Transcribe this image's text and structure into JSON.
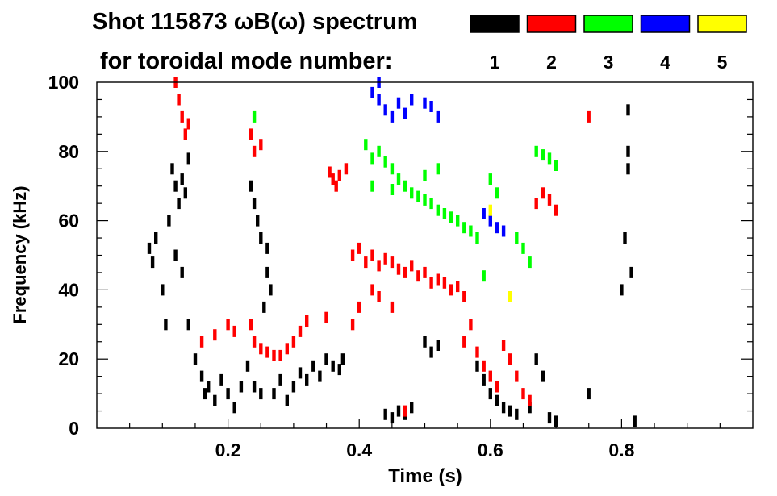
{
  "chart_data": {
    "type": "scatter",
    "title_line1": "Shot 115873 ωB(ω) spectrum",
    "title_line2": "for toroidal mode number:",
    "xlabel": "Time (s)",
    "ylabel": "Frequency (kHz)",
    "xlim": [
      0.0,
      1.0
    ],
    "ylim": [
      0,
      100
    ],
    "x_ticks": [
      {
        "value": 0.2,
        "label": "0.2"
      },
      {
        "value": 0.4,
        "label": "0.4"
      },
      {
        "value": 0.6,
        "label": "0.6"
      },
      {
        "value": 0.8,
        "label": "0.8"
      }
    ],
    "y_ticks": [
      {
        "value": 0,
        "label": "0"
      },
      {
        "value": 20,
        "label": "20"
      },
      {
        "value": 40,
        "label": "40"
      },
      {
        "value": 60,
        "label": "60"
      },
      {
        "value": 80,
        "label": "80"
      },
      {
        "value": 100,
        "label": "100"
      }
    ],
    "legend": [
      {
        "mode": "1",
        "color": "#000000"
      },
      {
        "mode": "2",
        "color": "#ff0000"
      },
      {
        "mode": "3",
        "color": "#00ff00"
      },
      {
        "mode": "4",
        "color": "#0000ff"
      },
      {
        "mode": "5",
        "color": "#ffff00"
      }
    ],
    "series": [
      {
        "name": "n=1",
        "color": "#000000",
        "points": [
          [
            0.08,
            52
          ],
          [
            0.085,
            48
          ],
          [
            0.09,
            55
          ],
          [
            0.1,
            40
          ],
          [
            0.105,
            30
          ],
          [
            0.11,
            60
          ],
          [
            0.115,
            75
          ],
          [
            0.12,
            70
          ],
          [
            0.125,
            65
          ],
          [
            0.13,
            72
          ],
          [
            0.135,
            68
          ],
          [
            0.14,
            78
          ],
          [
            0.12,
            50
          ],
          [
            0.13,
            45
          ],
          [
            0.14,
            30
          ],
          [
            0.15,
            20
          ],
          [
            0.16,
            15
          ],
          [
            0.165,
            10
          ],
          [
            0.17,
            12
          ],
          [
            0.18,
            8
          ],
          [
            0.19,
            14
          ],
          [
            0.2,
            10
          ],
          [
            0.21,
            6
          ],
          [
            0.22,
            12
          ],
          [
            0.23,
            18
          ],
          [
            0.235,
            70
          ],
          [
            0.24,
            65
          ],
          [
            0.245,
            60
          ],
          [
            0.25,
            55
          ],
          [
            0.26,
            52
          ],
          [
            0.27,
            10
          ],
          [
            0.28,
            14
          ],
          [
            0.29,
            8
          ],
          [
            0.3,
            12
          ],
          [
            0.31,
            16
          ],
          [
            0.32,
            14
          ],
          [
            0.33,
            18
          ],
          [
            0.34,
            15
          ],
          [
            0.35,
            20
          ],
          [
            0.36,
            18
          ],
          [
            0.37,
            17
          ],
          [
            0.375,
            20
          ],
          [
            0.26,
            45
          ],
          [
            0.265,
            40
          ],
          [
            0.255,
            35
          ],
          [
            0.25,
            10
          ],
          [
            0.24,
            12
          ],
          [
            0.44,
            4
          ],
          [
            0.45,
            3
          ],
          [
            0.46,
            5
          ],
          [
            0.47,
            4
          ],
          [
            0.48,
            6
          ],
          [
            0.5,
            25
          ],
          [
            0.51,
            22
          ],
          [
            0.52,
            24
          ],
          [
            0.58,
            18
          ],
          [
            0.59,
            14
          ],
          [
            0.6,
            10
          ],
          [
            0.61,
            8
          ],
          [
            0.62,
            6
          ],
          [
            0.63,
            5
          ],
          [
            0.64,
            4
          ],
          [
            0.66,
            6
          ],
          [
            0.67,
            20
          ],
          [
            0.68,
            15
          ],
          [
            0.69,
            3
          ],
          [
            0.7,
            2
          ],
          [
            0.75,
            10
          ],
          [
            0.8,
            40
          ],
          [
            0.805,
            55
          ],
          [
            0.81,
            75
          ],
          [
            0.815,
            45
          ],
          [
            0.81,
            80
          ],
          [
            0.82,
            2
          ],
          [
            0.81,
            92
          ]
        ]
      },
      {
        "name": "n=2",
        "color": "#ff0000",
        "points": [
          [
            0.12,
            100
          ],
          [
            0.125,
            95
          ],
          [
            0.13,
            90
          ],
          [
            0.135,
            85
          ],
          [
            0.14,
            88
          ],
          [
            0.16,
            25
          ],
          [
            0.18,
            27
          ],
          [
            0.2,
            30
          ],
          [
            0.21,
            28
          ],
          [
            0.235,
            30
          ],
          [
            0.24,
            25
          ],
          [
            0.25,
            23
          ],
          [
            0.26,
            22
          ],
          [
            0.27,
            21
          ],
          [
            0.28,
            21
          ],
          [
            0.29,
            23
          ],
          [
            0.3,
            25
          ],
          [
            0.31,
            28
          ],
          [
            0.32,
            31
          ],
          [
            0.235,
            85
          ],
          [
            0.24,
            80
          ],
          [
            0.25,
            82
          ],
          [
            0.355,
            74
          ],
          [
            0.36,
            72
          ],
          [
            0.365,
            70
          ],
          [
            0.37,
            73
          ],
          [
            0.38,
            75
          ],
          [
            0.39,
            50
          ],
          [
            0.4,
            52
          ],
          [
            0.41,
            48
          ],
          [
            0.42,
            50
          ],
          [
            0.43,
            47
          ],
          [
            0.44,
            49
          ],
          [
            0.45,
            48
          ],
          [
            0.46,
            46
          ],
          [
            0.47,
            45
          ],
          [
            0.48,
            47
          ],
          [
            0.49,
            44
          ],
          [
            0.5,
            45
          ],
          [
            0.51,
            42
          ],
          [
            0.52,
            43
          ],
          [
            0.53,
            42
          ],
          [
            0.54,
            40
          ],
          [
            0.55,
            41
          ],
          [
            0.56,
            38
          ],
          [
            0.39,
            30
          ],
          [
            0.4,
            35
          ],
          [
            0.35,
            32
          ],
          [
            0.56,
            25
          ],
          [
            0.57,
            30
          ],
          [
            0.58,
            22
          ],
          [
            0.59,
            18
          ],
          [
            0.6,
            15
          ],
          [
            0.61,
            12
          ],
          [
            0.62,
            24
          ],
          [
            0.63,
            20
          ],
          [
            0.64,
            15
          ],
          [
            0.65,
            10
          ],
          [
            0.66,
            8
          ],
          [
            0.67,
            65
          ],
          [
            0.68,
            68
          ],
          [
            0.69,
            66
          ],
          [
            0.7,
            63
          ],
          [
            0.75,
            90
          ],
          [
            0.42,
            40
          ],
          [
            0.43,
            38
          ],
          [
            0.45,
            35
          ],
          [
            0.47,
            5
          ]
        ]
      },
      {
        "name": "n=3",
        "color": "#00ff00",
        "points": [
          [
            0.41,
            82
          ],
          [
            0.42,
            78
          ],
          [
            0.43,
            80
          ],
          [
            0.44,
            77
          ],
          [
            0.45,
            75
          ],
          [
            0.46,
            72
          ],
          [
            0.47,
            70
          ],
          [
            0.48,
            68
          ],
          [
            0.49,
            67
          ],
          [
            0.5,
            66
          ],
          [
            0.51,
            65
          ],
          [
            0.52,
            63
          ],
          [
            0.53,
            62
          ],
          [
            0.54,
            61
          ],
          [
            0.55,
            60
          ],
          [
            0.56,
            58
          ],
          [
            0.57,
            57
          ],
          [
            0.58,
            55
          ],
          [
            0.59,
            44
          ],
          [
            0.6,
            72
          ],
          [
            0.61,
            68
          ],
          [
            0.64,
            55
          ],
          [
            0.65,
            52
          ],
          [
            0.66,
            48
          ],
          [
            0.67,
            80
          ],
          [
            0.68,
            79
          ],
          [
            0.69,
            78
          ],
          [
            0.7,
            76
          ],
          [
            0.24,
            90
          ],
          [
            0.42,
            70
          ],
          [
            0.45,
            69
          ],
          [
            0.5,
            73
          ],
          [
            0.52,
            75
          ]
        ]
      },
      {
        "name": "n=4",
        "color": "#0000ff",
        "points": [
          [
            0.42,
            97
          ],
          [
            0.43,
            95
          ],
          [
            0.44,
            92
          ],
          [
            0.45,
            90
          ],
          [
            0.46,
            94
          ],
          [
            0.47,
            91
          ],
          [
            0.48,
            95
          ],
          [
            0.5,
            94
          ],
          [
            0.51,
            93
          ],
          [
            0.52,
            90
          ],
          [
            0.59,
            62
          ],
          [
            0.6,
            60
          ],
          [
            0.61,
            58
          ],
          [
            0.62,
            57
          ],
          [
            0.43,
            100
          ]
        ]
      },
      {
        "name": "n=5",
        "color": "#ffff00",
        "points": [
          [
            0.63,
            38
          ],
          [
            0.6,
            63
          ]
        ]
      }
    ]
  }
}
